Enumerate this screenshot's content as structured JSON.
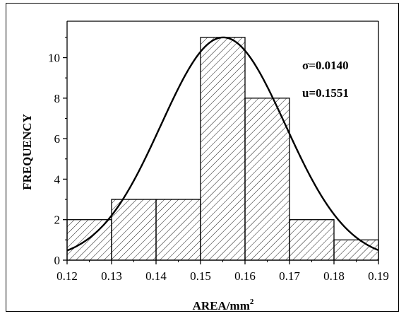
{
  "chart_data": {
    "type": "bar",
    "subtype": "histogram-with-normal-fit",
    "xlabel": "AREA/mm",
    "xlabel_superscript": "2",
    "ylabel": "FREQUENCY",
    "xlim": [
      0.12,
      0.19
    ],
    "ylim": [
      0,
      11.8
    ],
    "x_ticks": [
      "0.12",
      "0.13",
      "0.14",
      "0.15",
      "0.16",
      "0.17",
      "0.18",
      "0.19"
    ],
    "y_ticks": [
      "0",
      "2",
      "4",
      "6",
      "8",
      "10"
    ],
    "bins": [
      {
        "from": 0.12,
        "to": 0.13,
        "value": 2
      },
      {
        "from": 0.13,
        "to": 0.14,
        "value": 3
      },
      {
        "from": 0.14,
        "to": 0.15,
        "value": 3
      },
      {
        "from": 0.15,
        "to": 0.16,
        "value": 11
      },
      {
        "from": 0.16,
        "to": 0.17,
        "value": 8
      },
      {
        "from": 0.17,
        "to": 0.18,
        "value": 2
      },
      {
        "from": 0.18,
        "to": 0.19,
        "value": 1
      }
    ],
    "fit": {
      "type": "normal",
      "mu": 0.1551,
      "sigma": 0.014,
      "peak": 11
    },
    "annotations": [
      "σ=0.0140",
      "u=0.1551"
    ],
    "bar_fill": "hatched",
    "grid": false
  }
}
